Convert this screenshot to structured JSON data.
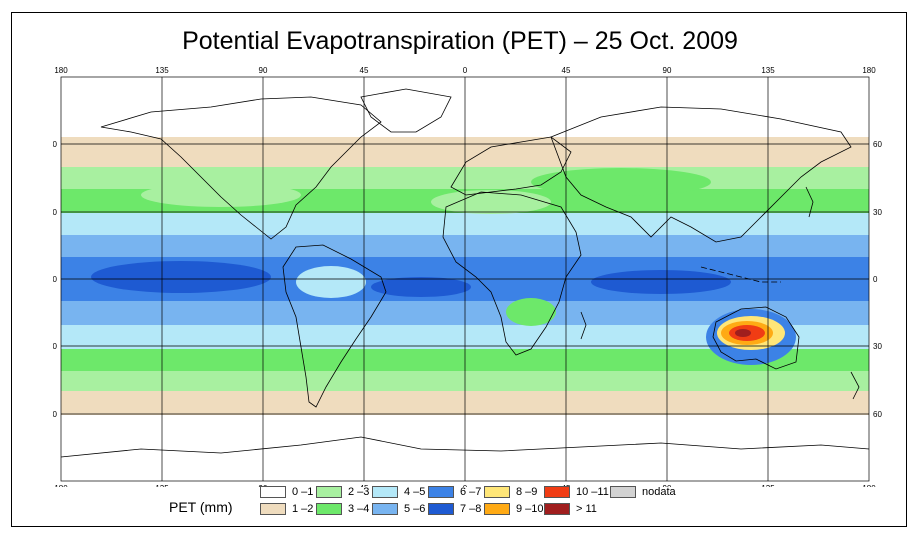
{
  "title": "Potential Evapotranspiration (PET) – 25 Oct. 2009",
  "map": {
    "longitude_ticks": [
      "180",
      "135",
      "90",
      "45",
      "0",
      "45",
      "90",
      "135",
      "180"
    ],
    "latitude_ticks": [
      "60",
      "30",
      "0",
      "30",
      "60"
    ],
    "projection": "equirectangular",
    "lon_range": [
      -180,
      180
    ],
    "lat_range": [
      -90,
      90
    ]
  },
  "legend": {
    "title": "PET (mm)",
    "items": [
      {
        "label": "0 –1",
        "color": "#ffffff"
      },
      {
        "label": "1 –2",
        "color": "#efdcbe"
      },
      {
        "label": "2 –3",
        "color": "#a8f0a0"
      },
      {
        "label": "3 –4",
        "color": "#6de86a"
      },
      {
        "label": "4 –5",
        "color": "#b4e8f8"
      },
      {
        "label": "5 –6",
        "color": "#78b4f0"
      },
      {
        "label": "6 –7",
        "color": "#3c82e6"
      },
      {
        "label": "7 –8",
        "color": "#1e5ad2"
      },
      {
        "label": "8 –9",
        "color": "#ffe678"
      },
      {
        "label": "9 –10",
        "color": "#ffaa14"
      },
      {
        "label": "10 –11",
        "color": "#f03c14"
      },
      {
        "label": "> 11",
        "color": "#a01e1e"
      },
      {
        "label": "nodata",
        "color": "#d2d2d2"
      }
    ]
  }
}
